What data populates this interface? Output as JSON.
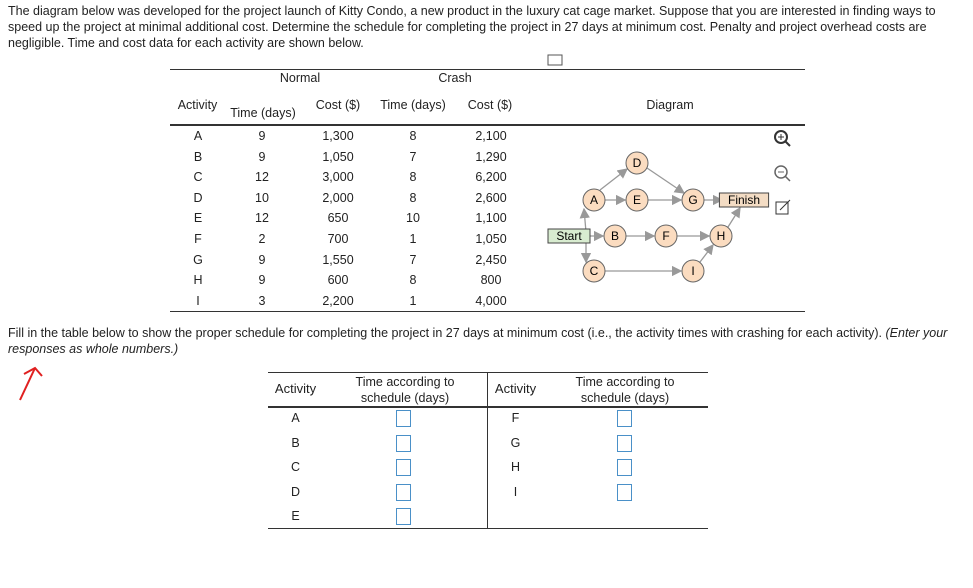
{
  "intro": "The diagram below was developed for the project launch of Kitty Condo, a new product in the luxury cat cage market. Suppose that you are interested in finding ways to speed up the project at minimal additional cost. Determine the schedule for completing the project in 27 days at minimum cost. Penalty and project overhead costs are negligible. Time and cost data for each activity are shown below.",
  "data_table": {
    "group_headers": [
      "Normal",
      "Crash"
    ],
    "headers": [
      "Activity",
      "Time (days)",
      "Cost ($)",
      "Time (days)",
      "Cost ($)"
    ],
    "diagram_header": "Diagram",
    "rows": [
      [
        "A",
        "9",
        "1,300",
        "8",
        "2,100"
      ],
      [
        "B",
        "9",
        "1,050",
        "7",
        "1,290"
      ],
      [
        "C",
        "12",
        "3,000",
        "8",
        "6,200"
      ],
      [
        "D",
        "10",
        "2,000",
        "8",
        "2,600"
      ],
      [
        "E",
        "12",
        "650",
        "10",
        "1,100"
      ],
      [
        "F",
        "2",
        "700",
        "1",
        "1,050"
      ],
      [
        "G",
        "9",
        "1,550",
        "7",
        "2,450"
      ],
      [
        "H",
        "9",
        "600",
        "8",
        "800"
      ],
      [
        "I",
        "3",
        "2,200",
        "1",
        "4,000"
      ]
    ]
  },
  "diagram": {
    "nodes": [
      "Start",
      "A",
      "B",
      "C",
      "D",
      "E",
      "F",
      "G",
      "H",
      "I",
      "Finish"
    ]
  },
  "instruction": "Fill in the table below to show the proper schedule for completing the project in 27 days at minimum cost (i.e., the activity times with crashing for each activity).",
  "instruction_note": "(Enter your responses as whole numbers.)",
  "answer_table": {
    "headers": [
      "Activity",
      "Time according to schedule (days)",
      "Activity",
      "Time according to schedule (days)"
    ],
    "left_activities": [
      "A",
      "B",
      "C",
      "D",
      "E"
    ],
    "right_activities": [
      "F",
      "G",
      "H",
      "I"
    ]
  }
}
